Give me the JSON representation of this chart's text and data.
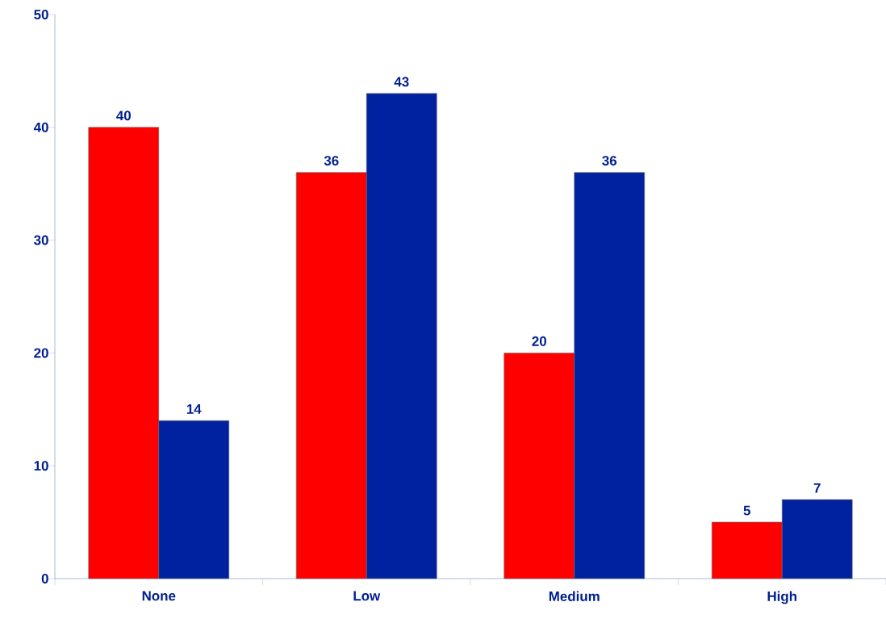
{
  "chart_data": {
    "type": "bar",
    "categories": [
      "None",
      "Low",
      "Medium",
      "High"
    ],
    "series": [
      {
        "color": "#ff0000",
        "values": [
          40,
          36,
          20,
          5
        ]
      },
      {
        "color": "#0022a0",
        "values": [
          14,
          43,
          36,
          7
        ]
      }
    ],
    "ylim": [
      0,
      50
    ],
    "yticks": [
      0,
      10,
      20,
      30,
      40,
      50
    ],
    "data_labels": true
  }
}
